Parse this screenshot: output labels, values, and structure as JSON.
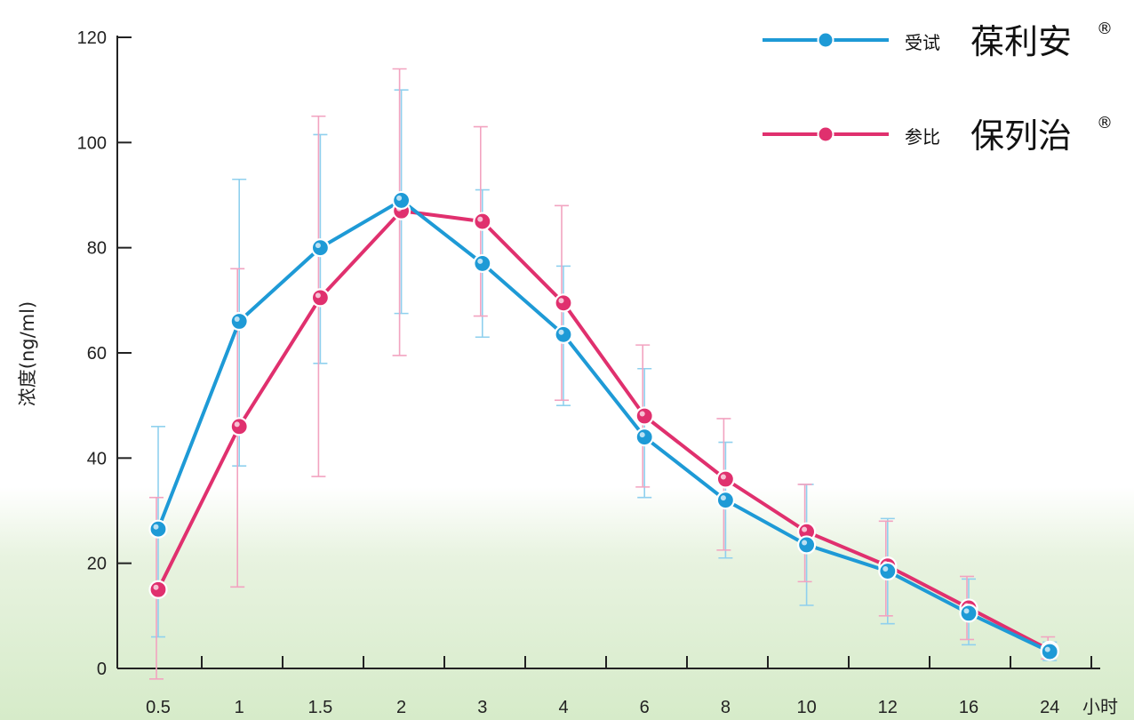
{
  "chart_data": {
    "type": "line",
    "categories": [
      "0.5",
      "1",
      "1.5",
      "2",
      "3",
      "4",
      "6",
      "8",
      "10",
      "12",
      "16",
      "24"
    ],
    "x_unit": "小时",
    "ylabel": "浓度(ng/ml)",
    "ylim": [
      0,
      120
    ],
    "yticks": [
      "0",
      "20",
      "40",
      "60",
      "80",
      "100",
      "120"
    ],
    "series": [
      {
        "name_prefix": "受试",
        "name": "葆利安",
        "mark": "®",
        "color": "#1e9ad6",
        "values": [
          26.5,
          66,
          80,
          89,
          77,
          63.5,
          44,
          32,
          23.5,
          18.5,
          10.5,
          3.2
        ],
        "error_low": [
          6,
          38.5,
          58,
          67.5,
          63,
          50,
          32.5,
          21,
          12,
          8.5,
          4.5,
          1.5
        ],
        "error_high": [
          46,
          93,
          101.5,
          110,
          91,
          76.5,
          57,
          43,
          35,
          28.5,
          17,
          5
        ]
      },
      {
        "name_prefix": "参比",
        "name": "保列治",
        "mark": "®",
        "color": "#e0306e",
        "values": [
          15,
          46,
          70.5,
          87,
          85,
          69.5,
          48,
          36,
          26,
          19.5,
          11.5,
          3.5
        ],
        "error_low": [
          -2,
          15.5,
          36.5,
          59.5,
          67,
          51,
          34.5,
          22.5,
          16.5,
          10,
          5.5,
          1.8
        ],
        "error_high": [
          32.5,
          76,
          105,
          114,
          103,
          88,
          61.5,
          47.5,
          35,
          28,
          17.5,
          6
        ]
      }
    ]
  }
}
